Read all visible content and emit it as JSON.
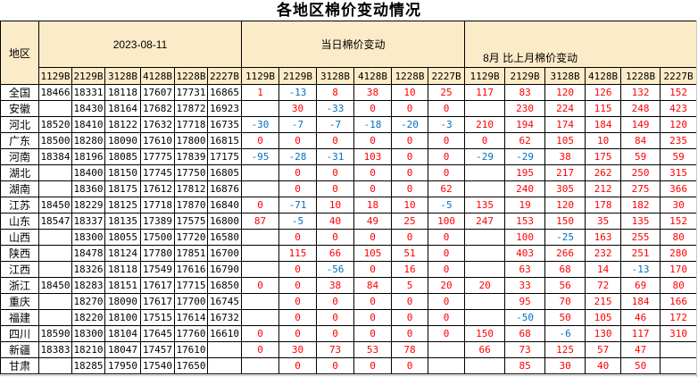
{
  "title": "各地区棉价变动情况",
  "table": {
    "region_header": "地区",
    "groups": [
      {
        "label": "2023-08-11"
      },
      {
        "label": "当日棉价变动"
      },
      {
        "label": "8月 比上月棉价变动"
      }
    ],
    "subcolumns": [
      "1129B",
      "2129B",
      "3128B",
      "4128B",
      "1228B",
      "2227B"
    ],
    "colors": {
      "positive": "#FF0000",
      "negative": "#0070C0",
      "header_bg": "#FCEBC8",
      "border": "#000000",
      "gridline": "#C9C9C9"
    },
    "rows": [
      {
        "region": "全国",
        "prices": [
          "18466",
          "18331",
          "18118",
          "17607",
          "17731",
          "16865"
        ],
        "daily": [
          "1",
          "-13",
          "8",
          "38",
          "10",
          "25"
        ],
        "monthly": [
          "117",
          "83",
          "120",
          "126",
          "132",
          "152"
        ]
      },
      {
        "region": "安徽",
        "prices": [
          "",
          "18430",
          "18164",
          "17682",
          "17872",
          "16923"
        ],
        "daily": [
          "",
          "30",
          "-33",
          "0",
          "0",
          "0"
        ],
        "monthly": [
          "",
          "230",
          "224",
          "115",
          "248",
          "423"
        ]
      },
      {
        "region": "河北",
        "prices": [
          "18520",
          "18410",
          "18122",
          "17632",
          "17718",
          "16735"
        ],
        "daily": [
          "-30",
          "-7",
          "-7",
          "-18",
          "-20",
          "-3"
        ],
        "monthly": [
          "210",
          "194",
          "174",
          "184",
          "149",
          "120"
        ]
      },
      {
        "region": "广东",
        "prices": [
          "18500",
          "18280",
          "18090",
          "17610",
          "17800",
          "16815"
        ],
        "daily": [
          "0",
          "0",
          "0",
          "0",
          "0",
          "0"
        ],
        "monthly": [
          "0",
          "62",
          "105",
          "10",
          "84",
          "235"
        ]
      },
      {
        "region": "河南",
        "prices": [
          "18384",
          "18196",
          "18085",
          "17775",
          "17839",
          "17175"
        ],
        "daily": [
          "-95",
          "-28",
          "-31",
          "103",
          "0",
          "0"
        ],
        "monthly": [
          "-29",
          "-29",
          "38",
          "175",
          "59",
          "59"
        ]
      },
      {
        "region": "湖北",
        "prices": [
          "",
          "18400",
          "18150",
          "17745",
          "17750",
          "16805"
        ],
        "daily": [
          "",
          "0",
          "0",
          "0",
          "0",
          "0"
        ],
        "monthly": [
          "",
          "195",
          "217",
          "262",
          "250",
          "315"
        ]
      },
      {
        "region": "湖南",
        "prices": [
          "",
          "18360",
          "18175",
          "17612",
          "17812",
          "16876"
        ],
        "daily": [
          "",
          "0",
          "0",
          "0",
          "0",
          "62"
        ],
        "monthly": [
          "",
          "240",
          "305",
          "212",
          "275",
          "366"
        ]
      },
      {
        "region": "江苏",
        "prices": [
          "18450",
          "18229",
          "18125",
          "17718",
          "17870",
          "16840"
        ],
        "daily": [
          "0",
          "-71",
          "10",
          "18",
          "10",
          "-5"
        ],
        "monthly": [
          "135",
          "19",
          "120",
          "178",
          "182",
          "30"
        ]
      },
      {
        "region": "山东",
        "prices": [
          "18547",
          "18337",
          "18135",
          "17389",
          "17575",
          "16800"
        ],
        "daily": [
          "87",
          "-5",
          "40",
          "49",
          "25",
          "100"
        ],
        "monthly": [
          "247",
          "153",
          "150",
          "35",
          "135",
          "152"
        ]
      },
      {
        "region": "山西",
        "prices": [
          "",
          "18300",
          "18055",
          "17500",
          "17720",
          "16580"
        ],
        "daily": [
          "",
          "0",
          "0",
          "0",
          "0",
          "0"
        ],
        "monthly": [
          "",
          "100",
          "-25",
          "163",
          "255",
          "80"
        ]
      },
      {
        "region": "陕西",
        "prices": [
          "",
          "18478",
          "18124",
          "17780",
          "17851",
          "16700"
        ],
        "daily": [
          "",
          "115",
          "66",
          "105",
          "51",
          "0"
        ],
        "monthly": [
          "",
          "403",
          "266",
          "232",
          "251",
          "280"
        ]
      },
      {
        "region": "江西",
        "prices": [
          "",
          "18326",
          "18118",
          "17549",
          "17616",
          "16790"
        ],
        "daily": [
          "",
          "0",
          "-56",
          "0",
          "16",
          "0"
        ],
        "monthly": [
          "",
          "63",
          "68",
          "14",
          "-13",
          "170"
        ]
      },
      {
        "region": "浙江",
        "prices": [
          "18450",
          "18283",
          "18151",
          "17617",
          "17715",
          "16850"
        ],
        "daily": [
          "0",
          "0",
          "38",
          "84",
          "5",
          "20"
        ],
        "monthly": [
          "20",
          "33",
          "56",
          "72",
          "69",
          "80"
        ]
      },
      {
        "region": "重庆",
        "prices": [
          "",
          "18270",
          "18090",
          "17617",
          "17700",
          "16745"
        ],
        "daily": [
          "",
          "0",
          "0",
          "0",
          "0",
          "0"
        ],
        "monthly": [
          "",
          "95",
          "70",
          "215",
          "184",
          "166"
        ]
      },
      {
        "region": "福建",
        "prices": [
          "",
          "18220",
          "18100",
          "17515",
          "17614",
          "16732"
        ],
        "daily": [
          "",
          "0",
          "0",
          "0",
          "0",
          "0"
        ],
        "monthly": [
          "",
          "-50",
          "50",
          "105",
          "46",
          "172"
        ]
      },
      {
        "region": "四川",
        "prices": [
          "18590",
          "18300",
          "18104",
          "17645",
          "17760",
          "16610"
        ],
        "daily": [
          "0",
          "0",
          "0",
          "0",
          "0",
          "0"
        ],
        "monthly": [
          "150",
          "68",
          "-6",
          "130",
          "117",
          "310"
        ]
      },
      {
        "region": "新疆",
        "prices": [
          "18383",
          "18210",
          "18047",
          "17457",
          "17610",
          ""
        ],
        "daily": [
          "0",
          "30",
          "73",
          "53",
          "78",
          ""
        ],
        "monthly": [
          "66",
          "73",
          "125",
          "57",
          "47",
          ""
        ]
      },
      {
        "region": "甘肃",
        "prices": [
          "",
          "18285",
          "17950",
          "17540",
          "17650",
          ""
        ],
        "daily": [
          "",
          "0",
          "0",
          "0",
          "0",
          ""
        ],
        "monthly": [
          "",
          "85",
          "30",
          "40",
          "50",
          ""
        ]
      }
    ]
  }
}
